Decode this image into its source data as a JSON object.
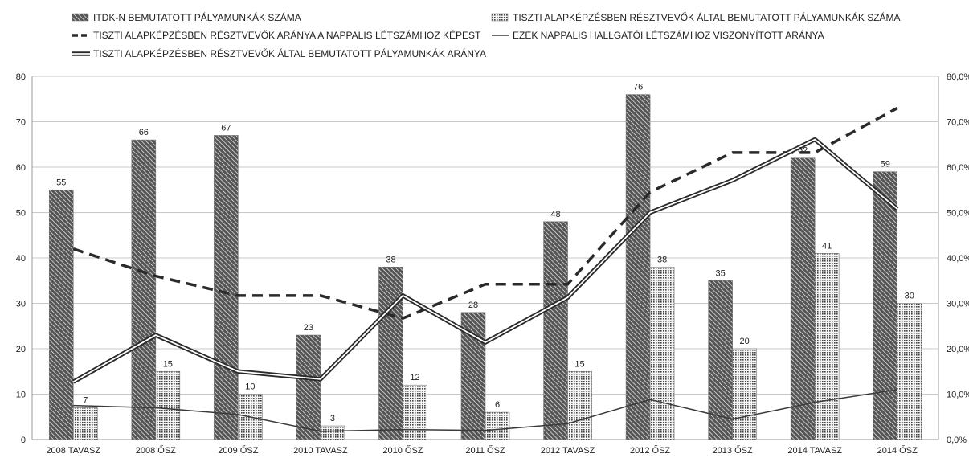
{
  "chart_data": {
    "type": "bar",
    "categories": [
      "2008 TAVASZ",
      "2008 ŐSZ",
      "2009 ŐSZ",
      "2010 TAVASZ",
      "2010 ŐSZ",
      "2011 ŐSZ",
      "2012 TAVASZ",
      "2012 ŐSZ",
      "2013 ŐSZ",
      "2014 TAVASZ",
      "2014 ŐSZ"
    ],
    "left_axis": {
      "ylim": [
        0,
        80
      ],
      "ticks": [
        "0",
        "10",
        "20",
        "30",
        "40",
        "50",
        "60",
        "70",
        "80"
      ]
    },
    "right_axis": {
      "ylim": [
        0,
        80
      ],
      "ticks": [
        "0,0%",
        "10,0%",
        "20,0%",
        "30,0%",
        "40,0%",
        "50,0%",
        "60,0%",
        "70,0%",
        "80,0%"
      ]
    },
    "grid": true,
    "legend_position": "top",
    "series": [
      {
        "name": "ITDK-N BEMUTATOTT PÁLYAMUNKÁK SZÁMA",
        "type": "bar",
        "axis": "left",
        "pattern": "diagonal-stripes",
        "values": [
          55,
          66,
          67,
          23,
          38,
          28,
          48,
          76,
          35,
          62,
          59
        ],
        "labels": [
          "55",
          "66",
          "67",
          "23",
          "38",
          "28",
          "48",
          "76",
          "35",
          "62",
          "59"
        ]
      },
      {
        "name": "TISZTI ALAPKÉPZÉSBEN RÉSZTVEVŐK ÁLTAL BEMUTATOTT PÁLYAMUNKÁK SZÁMA",
        "type": "bar",
        "axis": "left",
        "pattern": "dots",
        "values": [
          7,
          15,
          10,
          3,
          12,
          6,
          15,
          38,
          20,
          41,
          30
        ],
        "labels": [
          "7",
          "15",
          "10",
          "3",
          "12",
          "6",
          "15",
          "38",
          "20",
          "41",
          "30"
        ]
      },
      {
        "name": "TISZTI ALAPKÉPZÉSBEN RÉSZTVEVŐK ARÁNYA A NAPPALIS LÉTSZÁMHOZ KÉPEST",
        "type": "line",
        "axis": "right",
        "style": "dashed",
        "values": [
          42.0,
          36.0,
          31.7,
          31.7,
          26.7,
          34.2,
          34.2,
          54.5,
          63.2,
          63.2,
          73.0
        ]
      },
      {
        "name": "EZEK NAPPALIS HALLGATÓI LÉTSZÁMHOZ VISZONYÍTOTT ARÁNYA",
        "type": "line",
        "axis": "right",
        "style": "thin",
        "values": [
          7.5,
          7.0,
          5.5,
          1.8,
          2.2,
          2.0,
          3.5,
          8.8,
          4.5,
          8.2,
          11.0
        ]
      },
      {
        "name": "TISZTI ALAPKÉPZÉSBEN RÉSZTVEVŐK ÁLTAL BEMUTATOTT PÁLYAMUNKÁK ARÁNYA",
        "type": "line",
        "axis": "right",
        "style": "double",
        "values": [
          12.7,
          23.0,
          15.0,
          13.3,
          31.7,
          21.4,
          31.3,
          50.0,
          57.1,
          66.1,
          50.8
        ]
      }
    ]
  }
}
